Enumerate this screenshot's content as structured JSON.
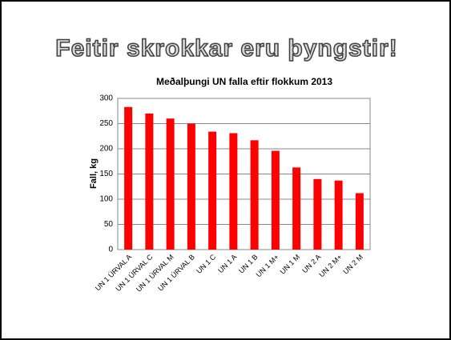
{
  "slide_title": "Feitir skrokkar eru þyngstir!",
  "chart_data": {
    "type": "bar",
    "title": "Meðalþungi UN falla eftir flokkum 2013",
    "y_label": "Fall, kg",
    "categories": [
      "UN 1 ÚRVAL A",
      "UN 1 ÚRVAL C",
      "UN 1 ÚRVAL M",
      "UN 1 ÚRVAL B",
      "UN 1 C",
      "UN 1 A",
      "UN 1 B",
      "UN 1 M+",
      "UN 1 M",
      "UN 2 A",
      "UN 2 M+",
      "UN 2 M"
    ],
    "values": [
      283,
      270,
      260,
      250,
      234,
      231,
      217,
      196,
      163,
      140,
      137,
      112
    ],
    "color": "#ff0000",
    "ylim": [
      0,
      300
    ],
    "yticks": [
      0,
      50,
      100,
      150,
      200,
      250,
      300
    ],
    "grid": true
  }
}
